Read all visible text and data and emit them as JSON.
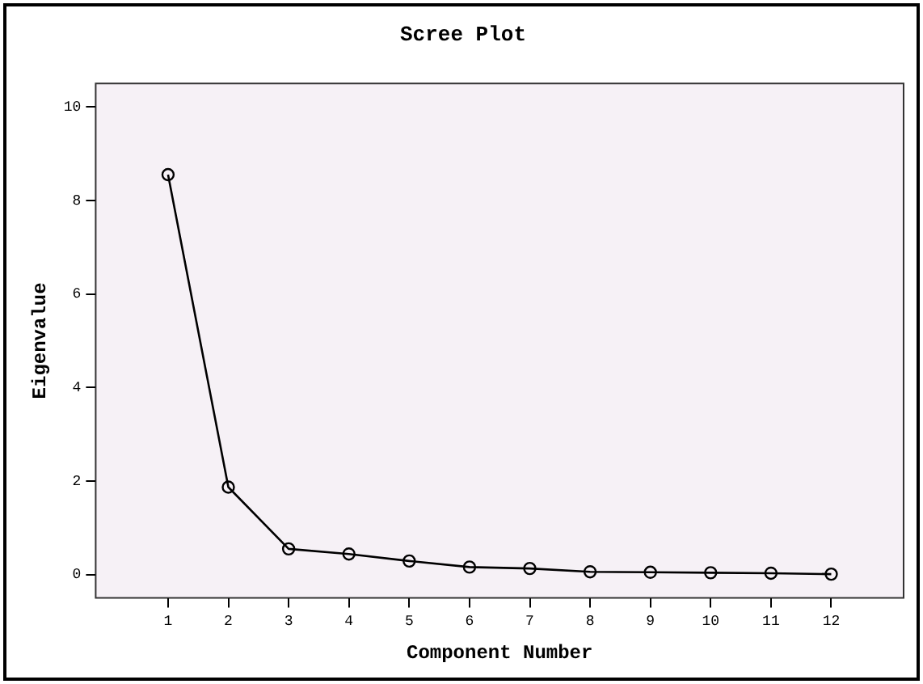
{
  "chart_data": {
    "type": "line",
    "title": "Scree Plot",
    "xlabel": "Component Number",
    "ylabel": "Eigenvalue",
    "x": [
      1,
      2,
      3,
      4,
      5,
      6,
      7,
      8,
      9,
      10,
      11,
      12
    ],
    "series": [
      {
        "color": "#000000",
        "values": [
          8.55,
          1.87,
          0.55,
          0.44,
          0.29,
          0.16,
          0.13,
          0.06,
          0.05,
          0.04,
          0.03,
          0.01
        ]
      }
    ],
    "xlim": [
      -0.2,
      13.2
    ],
    "xticks": [
      1,
      2,
      3,
      4,
      5,
      6,
      7,
      8,
      9,
      10,
      11,
      12
    ],
    "ylim": [
      -0.5,
      10.5
    ],
    "yticks": [
      0,
      2,
      4,
      6,
      8,
      10
    ],
    "grid": false,
    "legend": false,
    "marker": "circle",
    "line_style": "solid"
  }
}
